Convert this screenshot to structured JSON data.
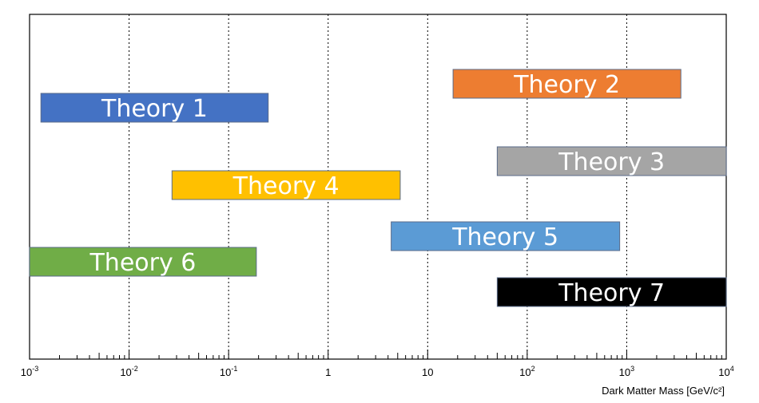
{
  "chart_data": {
    "type": "bar",
    "orientation": "horizontal-range",
    "xscale": "log",
    "xlim": [
      0.001,
      10000
    ],
    "grid": "vertical dotted",
    "xlabel": "Dark Matter Mass [GeV/c²]",
    "x_ticks": [
      {
        "base": "10",
        "exp": "-3"
      },
      {
        "base": "10",
        "exp": "-2"
      },
      {
        "base": "10",
        "exp": "-1"
      },
      {
        "base": "1",
        "exp": ""
      },
      {
        "base": "10",
        "exp": ""
      },
      {
        "base": "10",
        "exp": "2"
      },
      {
        "base": "10",
        "exp": "3"
      },
      {
        "base": "10",
        "exp": "4"
      }
    ],
    "x_tick_values": [
      0.001,
      0.01,
      0.1,
      1,
      10,
      100,
      1000,
      10000
    ],
    "series": [
      {
        "name": "Theory 1",
        "min": 0.0013,
        "max": 0.25,
        "color": "#4472c4"
      },
      {
        "name": "Theory 2",
        "min": 18,
        "max": 3500,
        "color": "#ed7d31"
      },
      {
        "name": "Theory 3",
        "min": 50,
        "max": 10000,
        "color": "#a5a5a5"
      },
      {
        "name": "Theory 4",
        "min": 0.027,
        "max": 5.3,
        "color": "#ffc000"
      },
      {
        "name": "Theory 5",
        "min": 4.3,
        "max": 850,
        "color": "#5b9bd5"
      },
      {
        "name": "Theory 6",
        "min": 0.001,
        "max": 0.19,
        "color": "#70ad47"
      },
      {
        "name": "Theory 7",
        "min": 50,
        "max": 10000,
        "color": "#000000"
      }
    ]
  }
}
